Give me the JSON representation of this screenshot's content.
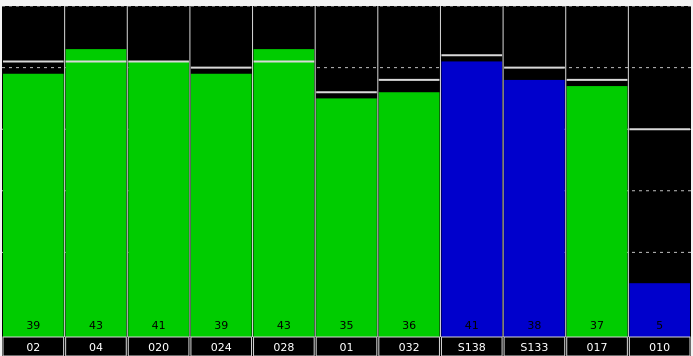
{
  "chart_data": {
    "type": "bar",
    "categories": [
      "02",
      "04",
      "020",
      "024",
      "028",
      "01",
      "032",
      "S138",
      "S133",
      "017",
      "010"
    ],
    "values": [
      39,
      43,
      41,
      39,
      43,
      35,
      36,
      41,
      38,
      37,
      5
    ],
    "reference_values": [
      41,
      41,
      41,
      40,
      41,
      36,
      38,
      42,
      40,
      38,
      30
    ],
    "bar_colors": [
      "#00cc00",
      "#00cc00",
      "#00cc00",
      "#00cc00",
      "#00cc00",
      "#00cc00",
      "#00cc00",
      "#0000cc",
      "#0000cc",
      "#00cc00",
      "#0000cc"
    ],
    "ylim": [
      0,
      50
    ],
    "grid": true,
    "colors": {
      "background": "#000000",
      "grid": "#bfbfbf",
      "separator": "#d9d9d9",
      "reference_line": "#d9d9d9",
      "value_text": "#000000",
      "category_text": "#ffffff"
    }
  }
}
